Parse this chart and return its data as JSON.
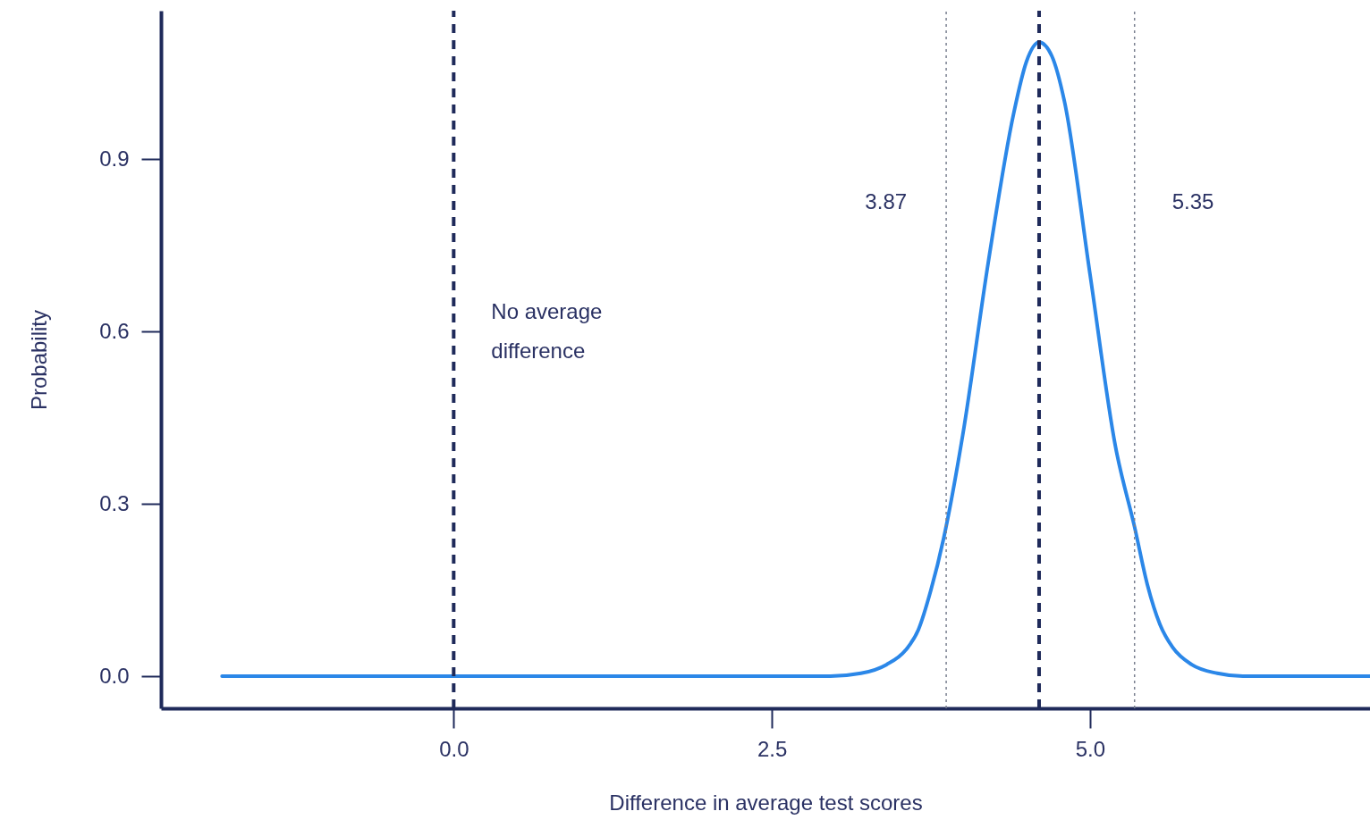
{
  "chart_data": {
    "type": "line",
    "xlabel": "Difference in average test scores",
    "ylabel": "Probability",
    "xlim": [
      -2.3,
      7.2
    ],
    "ylim": [
      -0.056,
      1.159
    ],
    "xticks": [
      {
        "value": 0,
        "label": "0.0"
      },
      {
        "value": 2.5,
        "label": "2.5"
      },
      {
        "value": 5,
        "label": "5.0"
      }
    ],
    "yticks": [
      {
        "value": 0,
        "label": "0.0"
      },
      {
        "value": 0.3,
        "label": "0.3"
      },
      {
        "value": 0.6,
        "label": "0.6"
      },
      {
        "value": 0.9,
        "label": "0.9"
      }
    ],
    "grid": false,
    "line_style": "solid",
    "marker": "none",
    "series": [
      {
        "color": "#2b87e8",
        "x": [
          -1.82,
          2.96,
          3.2,
          3.4,
          3.55,
          3.65,
          3.75,
          3.85,
          4.0,
          4.2,
          4.4,
          4.5,
          4.6,
          4.7,
          4.8,
          5.0,
          5.2,
          5.35,
          5.45,
          5.55,
          5.65,
          5.8,
          6.0,
          6.2,
          7.2
        ],
        "values": [
          0,
          0,
          0.005,
          0.02,
          0.045,
          0.08,
          0.15,
          0.24,
          0.42,
          0.72,
          0.98,
          1.07,
          1.104,
          1.08,
          1.0,
          0.7,
          0.4,
          0.26,
          0.16,
          0.09,
          0.05,
          0.02,
          0.005,
          0,
          0
        ]
      }
    ],
    "ref_lines": [
      {
        "axis": "x",
        "value": 0,
        "label": "No average\ndifference",
        "color": "#1f2a5a",
        "line_style": "dashed"
      },
      {
        "axis": "x",
        "value": 4.6,
        "color": "#1f2a5a",
        "line_style": "dashed"
      },
      {
        "axis": "x",
        "value": 3.87,
        "label": "3.87",
        "color": "#7a8090",
        "line_style": "dotted"
      },
      {
        "axis": "x",
        "value": 5.35,
        "label": "5.35",
        "color": "#7a8090",
        "line_style": "dotted"
      }
    ]
  }
}
